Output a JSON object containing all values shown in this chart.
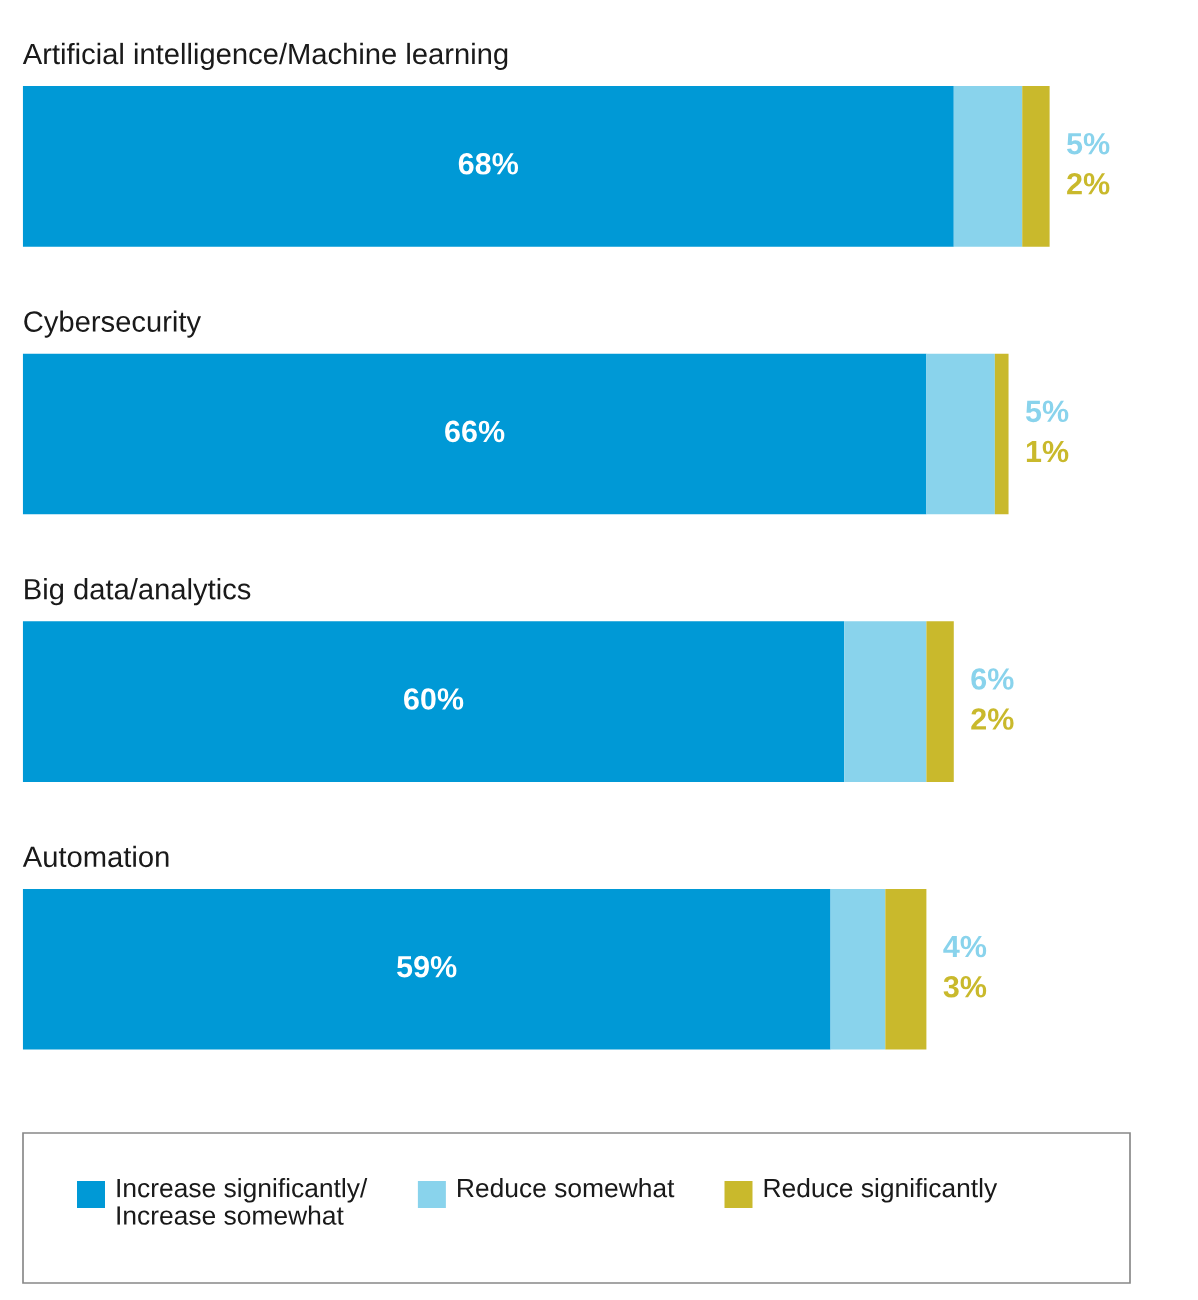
{
  "chart_data": {
    "type": "bar",
    "orientation": "horizontal",
    "stacked": true,
    "categories": [
      "Artificial intelligence/Machine learning",
      "Cybersecurity",
      "Big data/analytics",
      "Automation"
    ],
    "series": [
      {
        "name": "Increase significantly/\nIncrease somewhat",
        "color": "#0099d6",
        "values": [
          68,
          66,
          60,
          59
        ],
        "value_labels": [
          "68%",
          "66%",
          "60%",
          "59%"
        ]
      },
      {
        "name": "Reduce somewhat",
        "color": "#89d3ec",
        "values": [
          5,
          5,
          6,
          4
        ],
        "value_labels": [
          "5%",
          "5%",
          "6%",
          "4%"
        ]
      },
      {
        "name": "Reduce significantly",
        "color": "#c9b92c",
        "values": [
          2,
          1,
          2,
          3
        ],
        "value_labels": [
          "2%",
          "1%",
          "2%",
          "3%"
        ]
      }
    ],
    "legend": "bottom"
  }
}
